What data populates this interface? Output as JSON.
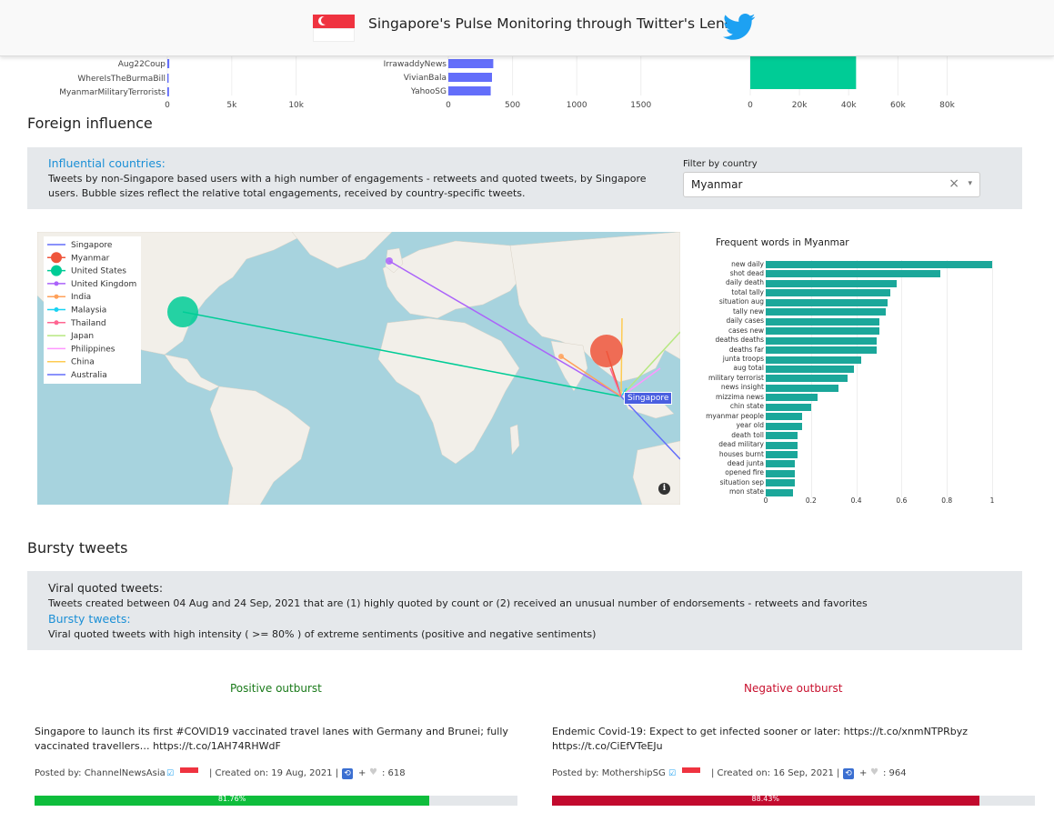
{
  "header": {
    "title": "Singapore's Pulse Monitoring through Twitter's Lens",
    "flag_icon": "singapore-flag-icon",
    "logo_icon": "twitter-bird-icon",
    "twitter_color": "#1da1f2"
  },
  "top_charts": [
    {
      "type": "bar",
      "categories": [
        "Aug22Coup",
        "WhereIsTheBurmaBill",
        "MyanmarMilitaryTerrorists"
      ],
      "values": [
        150,
        100,
        130
      ],
      "ticks": [
        "0",
        "5k",
        "10k"
      ],
      "xlim": [
        0,
        12000
      ]
    },
    {
      "type": "bar",
      "categories": [
        "IrrawaddyNews",
        "VivianBala",
        "YahooSG"
      ],
      "values": [
        350,
        340,
        330
      ],
      "ticks": [
        "0",
        "500",
        "1000",
        "1500"
      ],
      "xlim": [
        0,
        1700
      ]
    },
    {
      "type": "bar",
      "categories": [
        ""
      ],
      "values": [
        43000
      ],
      "ticks": [
        "0",
        "20k",
        "40k",
        "60k",
        "80k"
      ],
      "xlim": [
        0,
        85000
      ]
    }
  ],
  "foreign": {
    "section_title": "Foreign influence",
    "heading": "Influential countries:",
    "text": "Tweets by non-Singapore based users with a high number of engagements - retweets and quoted tweets, by Singapore users. Bubble sizes reflect the relative total engagements, received by country-specific tweets.",
    "filter_label": "Filter by country",
    "filter_value": "Myanmar",
    "clear_glyph": "×",
    "caret_glyph": "▾"
  },
  "map": {
    "legend": [
      {
        "name": "Singapore",
        "color": "#636efa",
        "marker": "line"
      },
      {
        "name": "Myanmar",
        "color": "#ef553b",
        "marker": "big"
      },
      {
        "name": "United States",
        "color": "#00cc96",
        "marker": "big"
      },
      {
        "name": "United Kingdom",
        "color": "#ab63fa",
        "marker": "dot"
      },
      {
        "name": "India",
        "color": "#ffa15a",
        "marker": "dot"
      },
      {
        "name": "Malaysia",
        "color": "#19d3f3",
        "marker": "dot"
      },
      {
        "name": "Thailand",
        "color": "#ff6692",
        "marker": "dot"
      },
      {
        "name": "Japan",
        "color": "#b6e880",
        "marker": "line"
      },
      {
        "name": "Philippines",
        "color": "#ff97ff",
        "marker": "line"
      },
      {
        "name": "China",
        "color": "#fecb52",
        "marker": "line"
      },
      {
        "name": "Australia",
        "color": "#636efa",
        "marker": "line"
      }
    ],
    "hub_label": "Singapore",
    "info_glyph": "i"
  },
  "chart_data": {
    "type": "bar",
    "title": "Frequent words in Myanmar",
    "orientation": "horizontal",
    "categories": [
      "new daily",
      "shot dead",
      "daily death",
      "total tally",
      "situation aug",
      "tally new",
      "daily cases",
      "cases new",
      "deaths deaths",
      "deaths far",
      "junta troops",
      "aug total",
      "military terrorist",
      "news insight",
      "mizzima news",
      "chin state",
      "myanmar people",
      "year old",
      "death toll",
      "dead military",
      "houses burnt",
      "dead junta",
      "opened fire",
      "situation sep",
      "mon state"
    ],
    "values": [
      1.0,
      0.77,
      0.58,
      0.55,
      0.54,
      0.53,
      0.5,
      0.5,
      0.49,
      0.49,
      0.42,
      0.39,
      0.36,
      0.32,
      0.23,
      0.2,
      0.16,
      0.16,
      0.14,
      0.14,
      0.14,
      0.13,
      0.13,
      0.13,
      0.12
    ],
    "xlim": [
      0,
      1
    ],
    "ticks": [
      "0",
      "0.2",
      "0.4",
      "0.6",
      "0.8",
      "1"
    ],
    "bar_color": "#1ba79a"
  },
  "bursty": {
    "section_title": "Bursty tweets",
    "viral_heading": "Viral quoted tweets:",
    "viral_text": "Tweets created between 04 Aug and 24 Sep, 2021 that are (1) highly quoted by count or (2) received an unusual number of endorsements - retweets and favorites",
    "bursty_heading": "Bursty tweets:",
    "bursty_text": "Viral quoted tweets with high intensity ( >= 80% ) of extreme sentiments (positive and negative sentiments)"
  },
  "positive": {
    "heading": "Positive outburst",
    "color": "#1a7a1a",
    "text": "Singapore to launch its first #COVID19 vaccinated travel lanes with Germany and Brunei; fully vaccinated travellers… https://t.co/1AH74RHWdF",
    "posted_by": "Posted by: ChannelNewsAsia",
    "created": "| Created on: 19 Aug, 2021 |",
    "plus": "+",
    "count": ": 618",
    "percent": "81.76%",
    "ratio": 0.8176,
    "bar_color": "#0ebd3c"
  },
  "negative": {
    "heading": "Negative outburst",
    "color": "#c8102e",
    "text": "Endemic Covid-19: Expect to get infected sooner or later: https://t.co/xnmNTPRbyz https://t.co/CiEfVTeEJu",
    "posted_by": "Posted by: MothershipSG",
    "created": "| Created on: 16 Sep, 2021 |",
    "plus": "+",
    "count": ": 964",
    "percent": "88.43%",
    "ratio": 0.8843,
    "bar_color": "#c20a2e"
  }
}
